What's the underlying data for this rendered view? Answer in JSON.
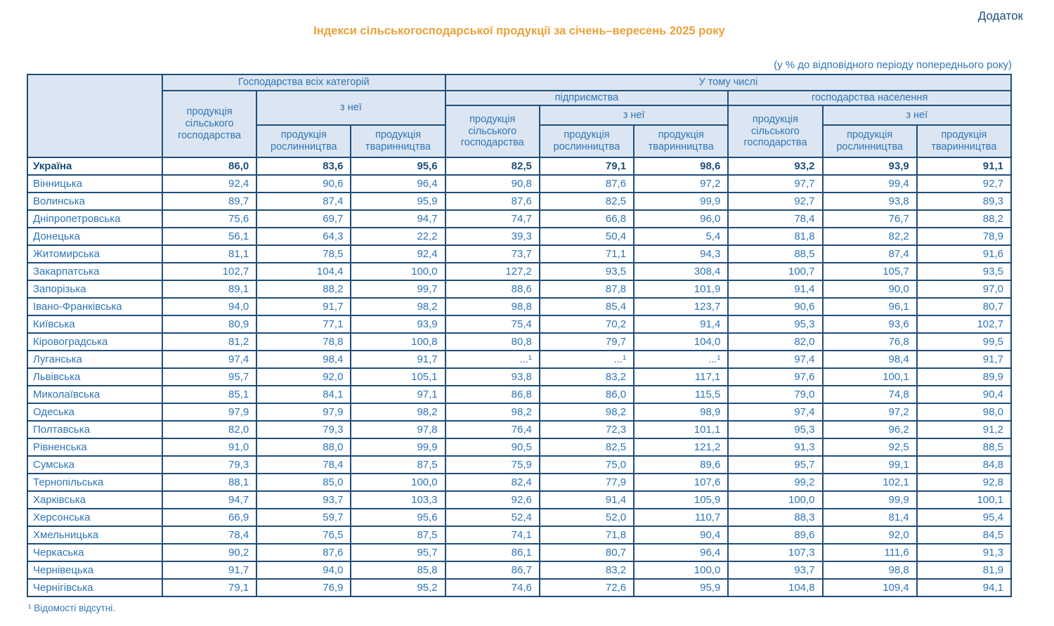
{
  "page": {
    "corner_label": "Додаток",
    "title": "Індекси сільськогосподарської продукції за січень–вересень 2025 року",
    "subtitle": "(у % до відповідного періоду попереднього року)",
    "footnote": "¹ Відомості відсутні."
  },
  "colors": {
    "title_accent": "#E9A239",
    "header_background": "#DCE6F2",
    "table_border": "#1F4E79",
    "text_blue": "#2E75B6"
  },
  "table": {
    "header": {
      "all_categories": "Господарства всіх категорій",
      "including": "У тому числі",
      "enterprises": "підприємства",
      "households": "господарства населення",
      "agri_product": "продукція сільського господарства",
      "of_which": "з неї",
      "crop": "продукція рослинництва",
      "livestock": "продукція тваринництва"
    },
    "rows": [
      {
        "region": "Україна",
        "bold": true,
        "values": [
          "86,0",
          "83,6",
          "95,6",
          "82,5",
          "79,1",
          "98,6",
          "93,2",
          "93,9",
          "91,1"
        ]
      },
      {
        "region": "Вінницька",
        "values": [
          "92,4",
          "90,6",
          "96,4",
          "90,8",
          "87,6",
          "97,2",
          "97,7",
          "99,4",
          "92,7"
        ]
      },
      {
        "region": "Волинська",
        "values": [
          "89,7",
          "87,4",
          "95,9",
          "87,6",
          "82,5",
          "99,9",
          "92,7",
          "93,8",
          "89,3"
        ]
      },
      {
        "region": "Дніпропетровська",
        "values": [
          "75,6",
          "69,7",
          "94,7",
          "74,7",
          "66,8",
          "96,0",
          "78,4",
          "76,7",
          "88,2"
        ]
      },
      {
        "region": "Донецька",
        "values": [
          "56,1",
          "64,3",
          "22,2",
          "39,3",
          "50,4",
          "5,4",
          "81,8",
          "82,2",
          "78,9"
        ]
      },
      {
        "region": "Житомирська",
        "values": [
          "81,1",
          "78,5",
          "92,4",
          "73,7",
          "71,1",
          "94,3",
          "88,5",
          "87,4",
          "91,6"
        ]
      },
      {
        "region": "Закарпатська",
        "values": [
          "102,7",
          "104,4",
          "100,0",
          "127,2",
          "93,5",
          "308,4",
          "100,7",
          "105,7",
          "93,5"
        ]
      },
      {
        "region": "Запорізька",
        "values": [
          "89,1",
          "88,2",
          "99,7",
          "88,6",
          "87,8",
          "101,9",
          "91,4",
          "90,0",
          "97,0"
        ]
      },
      {
        "region": "Івано-Франківська",
        "values": [
          "94,0",
          "91,7",
          "98,2",
          "98,8",
          "85,4",
          "123,7",
          "90,6",
          "96,1",
          "80,7"
        ]
      },
      {
        "region": "Київська",
        "values": [
          "80,9",
          "77,1",
          "93,9",
          "75,4",
          "70,2",
          "91,4",
          "95,3",
          "93,6",
          "102,7"
        ]
      },
      {
        "region": "Кіровоградська",
        "values": [
          "81,2",
          "78,8",
          "100,8",
          "80,8",
          "79,7",
          "104,0",
          "82,0",
          "76,8",
          "99,5"
        ]
      },
      {
        "region": "Луганська",
        "values": [
          "97,4",
          "98,4",
          "91,7",
          "...¹",
          "...¹",
          "...¹",
          "97,4",
          "98,4",
          "91,7"
        ]
      },
      {
        "region": "Львівська",
        "values": [
          "95,7",
          "92,0",
          "105,1",
          "93,8",
          "83,2",
          "117,1",
          "97,6",
          "100,1",
          "89,9"
        ]
      },
      {
        "region": "Миколаївська",
        "values": [
          "85,1",
          "84,1",
          "97,1",
          "86,8",
          "86,0",
          "115,5",
          "79,0",
          "74,8",
          "90,4"
        ]
      },
      {
        "region": "Одеська",
        "values": [
          "97,9",
          "97,9",
          "98,2",
          "98,2",
          "98,2",
          "98,9",
          "97,4",
          "97,2",
          "98,0"
        ]
      },
      {
        "region": "Полтавська",
        "values": [
          "82,0",
          "79,3",
          "97,8",
          "76,4",
          "72,3",
          "101,1",
          "95,3",
          "96,2",
          "91,2"
        ]
      },
      {
        "region": "Рівненська",
        "values": [
          "91,0",
          "88,0",
          "99,9",
          "90,5",
          "82,5",
          "121,2",
          "91,3",
          "92,5",
          "88,5"
        ]
      },
      {
        "region": "Сумська",
        "values": [
          "79,3",
          "78,4",
          "87,5",
          "75,9",
          "75,0",
          "89,6",
          "95,7",
          "99,1",
          "84,8"
        ]
      },
      {
        "region": "Тернопільська",
        "values": [
          "88,1",
          "85,0",
          "100,0",
          "82,4",
          "77,9",
          "107,6",
          "99,2",
          "102,1",
          "92,8"
        ]
      },
      {
        "region": "Харківська",
        "values": [
          "94,7",
          "93,7",
          "103,3",
          "92,6",
          "91,4",
          "105,9",
          "100,0",
          "99,9",
          "100,1"
        ]
      },
      {
        "region": "Херсонська",
        "values": [
          "66,9",
          "59,7",
          "95,6",
          "52,4",
          "52,0",
          "110,7",
          "88,3",
          "81,4",
          "95,4"
        ]
      },
      {
        "region": "Хмельницька",
        "values": [
          "78,4",
          "76,5",
          "87,5",
          "74,1",
          "71,8",
          "90,4",
          "89,6",
          "92,0",
          "84,5"
        ]
      },
      {
        "region": "Черкаська",
        "values": [
          "90,2",
          "87,6",
          "95,7",
          "86,1",
          "80,7",
          "96,4",
          "107,3",
          "111,6",
          "91,3"
        ]
      },
      {
        "region": "Чернівецька",
        "values": [
          "91,7",
          "94,0",
          "85,8",
          "86,7",
          "83,2",
          "100,0",
          "93,7",
          "98,8",
          "81,9"
        ]
      },
      {
        "region": "Чернігівська",
        "values": [
          "79,1",
          "76,9",
          "95,2",
          "74,6",
          "72,6",
          "95,9",
          "104,8",
          "109,4",
          "94,1"
        ]
      }
    ]
  }
}
